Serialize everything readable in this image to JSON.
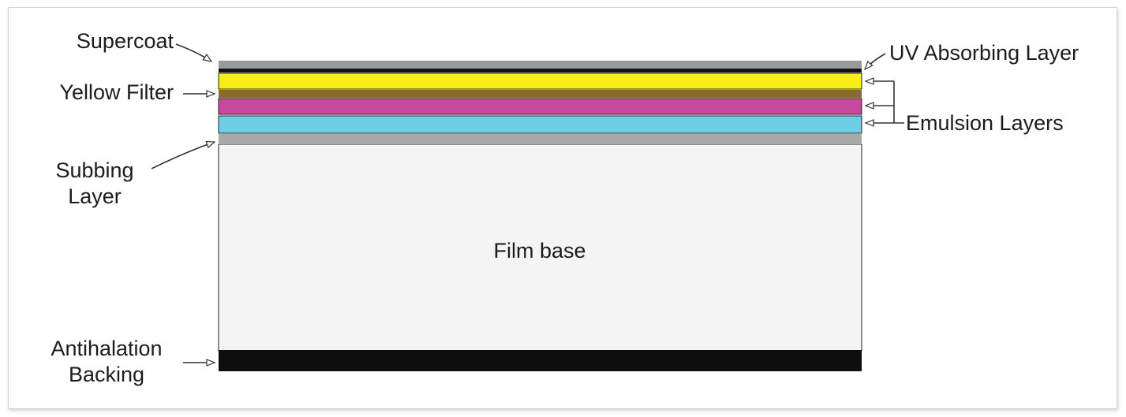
{
  "labels": {
    "supercoat": "Supercoat",
    "yellow_filter": "Yellow Filter",
    "subbing_layer_line1": "Subbing",
    "subbing_layer_line2": "Layer",
    "antihalation_line1": "Antihalation",
    "antihalation_line2": "Backing",
    "uv_absorbing_layer": "UV Absorbing Layer",
    "emulsion_layers": "Emulsion Layers",
    "film_base": "Film base"
  },
  "colors": {
    "supercoat": "#9a9a9a",
    "uv_layer": "#111111",
    "yellow_emulsion": "#f7ee17",
    "yellow_filter": "#8a6a2e",
    "magenta_emulsion": "#c9499e",
    "cyan_emulsion": "#6ccde4",
    "subbing_layer": "#a9a9a9",
    "film_base": "#f4f4f4",
    "antihalation_backing": "#0e0e0e"
  }
}
